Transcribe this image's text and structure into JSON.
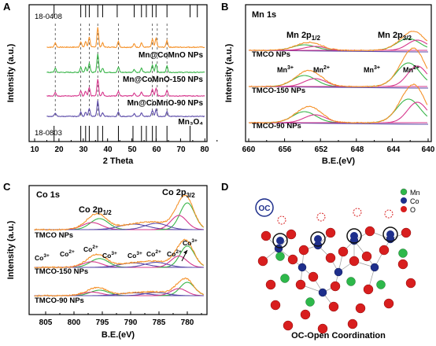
{
  "panelA": {
    "letter": "A",
    "ylabel": "Intensity (a.u.)",
    "xlabel": "2 Theta",
    "xticks": [
      "10",
      "20",
      "30",
      "40",
      "50",
      "60",
      "70",
      "80"
    ],
    "ref_top": "18-0408",
    "ref_bottom": "18-0803",
    "labels": [
      "Mn@CoMnO NPs",
      "Mn@CoMnO-150 NPs",
      "Mn@CoMnO-90 NPs",
      "Mn₃O₄"
    ],
    "colors": [
      "#f5922a",
      "#3ab54a",
      "#d6358c",
      "#5b4aa8"
    ]
  },
  "panelB": {
    "letter": "B",
    "title": "Mn 1s",
    "ylabel": "Intensity (a.u.)",
    "xlabel": "B.E.(eV)",
    "xticks": [
      "660",
      "656",
      "652",
      "648",
      "644",
      "640"
    ],
    "peak_half": "Mn 2p",
    "peak_half_sub": "1/2",
    "peak_3half": "Mn 2p",
    "peak_3half_sub": "3/2",
    "mn3": "Mn",
    "mn3_sup": "3+",
    "mn2": "Mn",
    "mn2_sup": "2+",
    "samples": [
      "TMCO NPs",
      "TMCO-150 NPs",
      "TMCO-90 NPs"
    ]
  },
  "panelC": {
    "letter": "C",
    "title": "Co 1s",
    "ylabel": "Intensity (a.u.)",
    "xlabel": "B.E.(eV)",
    "xticks": [
      "805",
      "800",
      "795",
      "790",
      "785",
      "780"
    ],
    "peak_half": "Co 2p",
    "peak_half_sub": "1/2",
    "peak_3half": "Co 2p",
    "peak_3half_sub": "3/2",
    "co3": "Co",
    "co3_sup": "3+",
    "co2": "Co",
    "co2_sup": "2+",
    "samples": [
      "TMCO NPs",
      "TMCO-150 NPs",
      "TMCO-90 NPs"
    ]
  },
  "panelD": {
    "letter": "D",
    "oc_badge": "OC",
    "caption": "OC-Open Coordination",
    "legend": [
      {
        "label": "Mn",
        "color": "#2db84a"
      },
      {
        "label": "Co",
        "color": "#1e2f8c"
      },
      {
        "label": "O",
        "color": "#d81e1e"
      }
    ]
  }
}
